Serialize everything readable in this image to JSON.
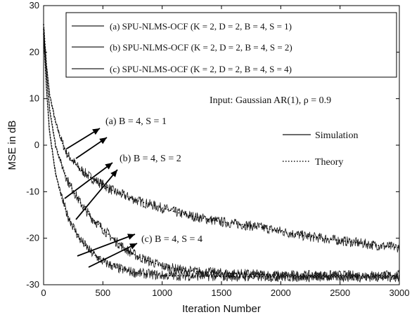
{
  "chart_data": {
    "type": "line",
    "xlabel": "Iteration Number",
    "ylabel": "MSE in dB",
    "xlim": [
      0,
      3000
    ],
    "ylim": [
      -30,
      30
    ],
    "xticks": [
      "0",
      "500",
      "1000",
      "1500",
      "2000",
      "2500",
      "3000"
    ],
    "yticks": [
      "30",
      "20",
      "10",
      "0",
      "-10",
      "-20",
      "-30"
    ],
    "grid": false,
    "legend_position": "top-right",
    "legend": [
      "(a) SPU-NLMS-OCF (K = 2, D = 2, B = 4, S = 1)",
      "(b) SPU-NLMS-OCF (K = 2, D = 2, B = 4, S = 2)",
      "(c) SPU-NLMS-OCF (K = 2, D = 2, B = 4, S = 4)"
    ],
    "annotations": {
      "input": "Input: Gaussian AR(1), ρ  = 0.9",
      "simulation": "Simulation",
      "theory": "Theory",
      "label_a": "(a) B = 4, S = 1",
      "label_b": "(b) B = 4, S = 2",
      "label_c": "(c) B = 4, S = 4"
    },
    "series": [
      {
        "x": [
          0,
          25,
          50,
          100,
          150,
          200,
          300,
          400,
          500,
          600,
          800,
          1000,
          1200,
          1500,
          1800,
          2000,
          2200,
          2500,
          2800,
          3000
        ],
        "values": [
          26,
          17,
          11,
          5,
          1,
          -2,
          -5,
          -7,
          -8.5,
          -10,
          -12,
          -13.5,
          -15,
          -16.5,
          -17.5,
          -18.5,
          -19.5,
          -20.5,
          -21.5,
          -22
        ]
      },
      {
        "x": [
          0,
          25,
          50,
          100,
          150,
          200,
          300,
          400,
          500,
          600,
          700,
          800,
          1000,
          1200,
          1500,
          1800,
          2000,
          2500,
          3000
        ],
        "values": [
          25,
          15,
          8,
          0,
          -4,
          -7.5,
          -12,
          -15.5,
          -18,
          -20.5,
          -22.5,
          -24,
          -26,
          -27,
          -27.5,
          -27.8,
          -28,
          -28,
          -28
        ]
      },
      {
        "x": [
          0,
          25,
          50,
          100,
          150,
          200,
          300,
          400,
          500,
          600,
          700,
          800,
          1000,
          1500,
          2000,
          2500,
          3000
        ],
        "values": [
          24,
          12,
          3,
          -6,
          -11,
          -15,
          -20,
          -23,
          -25,
          -26.2,
          -27,
          -27.5,
          -28,
          -28.2,
          -28.3,
          -28.3,
          -28.3
        ]
      }
    ]
  }
}
